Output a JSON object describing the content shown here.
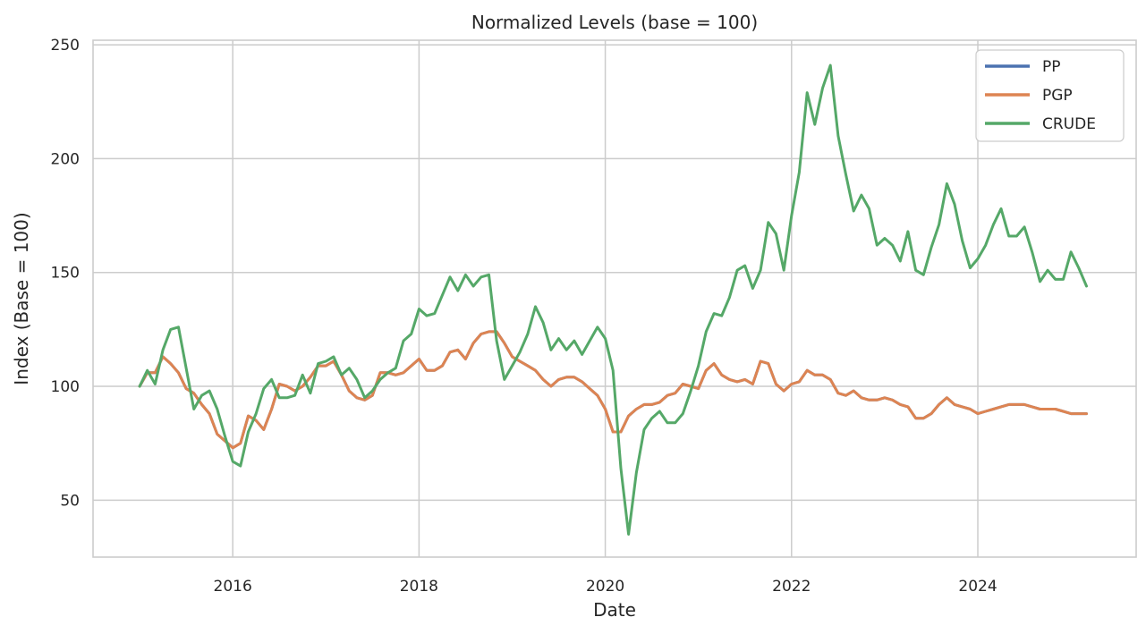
{
  "chart_data": {
    "type": "line",
    "title": "Normalized Levels (base = 100)",
    "xlabel": "Date",
    "ylabel": "Index (Base = 100)",
    "xlim": [
      2014.5,
      2025.7
    ],
    "ylim": [
      25,
      252
    ],
    "xticks": [
      2016,
      2018,
      2020,
      2022,
      2024
    ],
    "xtick_labels": [
      "2016",
      "2018",
      "2020",
      "2022",
      "2024"
    ],
    "yticks": [
      50,
      100,
      150,
      200,
      250
    ],
    "ytick_labels": [
      "50",
      "100",
      "150",
      "200",
      "250"
    ],
    "grid": true,
    "legend_position": "top-right",
    "x_unit": "year",
    "x": [
      2015.0,
      2015.083,
      2015.167,
      2015.25,
      2015.333,
      2015.417,
      2015.5,
      2015.583,
      2015.667,
      2015.75,
      2015.833,
      2015.917,
      2016.0,
      2016.083,
      2016.167,
      2016.25,
      2016.333,
      2016.417,
      2016.5,
      2016.583,
      2016.667,
      2016.75,
      2016.833,
      2016.917,
      2017.0,
      2017.083,
      2017.167,
      2017.25,
      2017.333,
      2017.417,
      2017.5,
      2017.583,
      2017.667,
      2017.75,
      2017.833,
      2017.917,
      2018.0,
      2018.083,
      2018.167,
      2018.25,
      2018.333,
      2018.417,
      2018.5,
      2018.583,
      2018.667,
      2018.75,
      2018.833,
      2018.917,
      2019.0,
      2019.083,
      2019.167,
      2019.25,
      2019.333,
      2019.417,
      2019.5,
      2019.583,
      2019.667,
      2019.75,
      2019.833,
      2019.917,
      2020.0,
      2020.083,
      2020.167,
      2020.25,
      2020.333,
      2020.417,
      2020.5,
      2020.583,
      2020.667,
      2020.75,
      2020.833,
      2020.917,
      2021.0,
      2021.083,
      2021.167,
      2021.25,
      2021.333,
      2021.417,
      2021.5,
      2021.583,
      2021.667,
      2021.75,
      2021.833,
      2021.917,
      2022.0,
      2022.083,
      2022.167,
      2022.25,
      2022.333,
      2022.417,
      2022.5,
      2022.583,
      2022.667,
      2022.75,
      2022.833,
      2022.917,
      2023.0,
      2023.083,
      2023.167,
      2023.25,
      2023.333,
      2023.417,
      2023.5,
      2023.583,
      2023.667,
      2023.75,
      2023.833,
      2023.917,
      2024.0,
      2024.083,
      2024.167,
      2024.25,
      2024.333,
      2024.417,
      2024.5,
      2024.583,
      2024.667,
      2024.75,
      2024.833,
      2024.917,
      2025.0,
      2025.083,
      2025.167
    ],
    "series": [
      {
        "name": "PP",
        "color": "#4c72b0",
        "values": [
          100,
          106,
          106,
          113,
          110,
          106,
          99,
          97,
          92,
          88,
          79,
          76,
          73,
          75,
          87,
          85,
          81,
          90,
          101,
          100,
          98,
          100,
          104,
          109,
          109,
          111,
          105,
          98,
          95,
          94,
          96,
          106,
          106,
          105,
          106,
          109,
          112,
          107,
          107,
          109,
          115,
          116,
          112,
          119,
          123,
          124,
          124,
          119,
          113,
          111,
          109,
          107,
          103,
          100,
          103,
          104,
          104,
          102,
          99,
          96,
          90,
          80,
          80,
          87,
          90,
          92,
          92,
          93,
          96,
          97,
          101,
          100,
          99,
          107,
          110,
          105,
          103,
          102,
          103,
          101,
          111,
          110,
          101,
          98,
          101,
          102,
          107,
          105,
          105,
          103,
          97,
          96,
          98,
          95,
          94,
          94,
          95,
          94,
          92,
          91,
          86,
          86,
          88,
          92,
          95,
          92,
          91,
          90,
          88,
          89,
          90,
          91,
          92,
          92,
          92,
          91,
          90,
          90,
          90,
          89,
          88,
          88,
          88
        ]
      },
      {
        "name": "PGP",
        "color": "#dd8452",
        "values": [
          100,
          106,
          106,
          113,
          110,
          106,
          99,
          97,
          92,
          88,
          79,
          76,
          73,
          75,
          87,
          85,
          81,
          90,
          101,
          100,
          98,
          100,
          104,
          109,
          109,
          111,
          105,
          98,
          95,
          94,
          96,
          106,
          106,
          105,
          106,
          109,
          112,
          107,
          107,
          109,
          115,
          116,
          112,
          119,
          123,
          124,
          124,
          119,
          113,
          111,
          109,
          107,
          103,
          100,
          103,
          104,
          104,
          102,
          99,
          96,
          90,
          80,
          80,
          87,
          90,
          92,
          92,
          93,
          96,
          97,
          101,
          100,
          99,
          107,
          110,
          105,
          103,
          102,
          103,
          101,
          111,
          110,
          101,
          98,
          101,
          102,
          107,
          105,
          105,
          103,
          97,
          96,
          98,
          95,
          94,
          94,
          95,
          94,
          92,
          91,
          86,
          86,
          88,
          92,
          95,
          92,
          91,
          90,
          88,
          89,
          90,
          91,
          92,
          92,
          92,
          91,
          90,
          90,
          90,
          89,
          88,
          88,
          88
        ]
      },
      {
        "name": "CRUDE",
        "color": "#55a868",
        "values": [
          100,
          107,
          101,
          116,
          125,
          126,
          108,
          90,
          96,
          98,
          90,
          78,
          67,
          65,
          80,
          88,
          99,
          103,
          95,
          95,
          96,
          105,
          97,
          110,
          111,
          113,
          105,
          108,
          103,
          95,
          98,
          103,
          106,
          108,
          120,
          123,
          134,
          131,
          132,
          140,
          148,
          142,
          149,
          144,
          148,
          149,
          120,
          103,
          109,
          115,
          123,
          135,
          128,
          116,
          121,
          116,
          120,
          114,
          120,
          126,
          121,
          107,
          64,
          35,
          62,
          81,
          86,
          89,
          84,
          84,
          88,
          98,
          109,
          124,
          132,
          131,
          139,
          151,
          153,
          143,
          151,
          172,
          167,
          151,
          175,
          194,
          229,
          215,
          231,
          241,
          210,
          193,
          177,
          184,
          178,
          162,
          165,
          162,
          155,
          168,
          151,
          149,
          161,
          171,
          189,
          180,
          164,
          152,
          156,
          162,
          171,
          178,
          166,
          166,
          170,
          159,
          146,
          151,
          147,
          147,
          159,
          152,
          144
        ]
      }
    ]
  }
}
